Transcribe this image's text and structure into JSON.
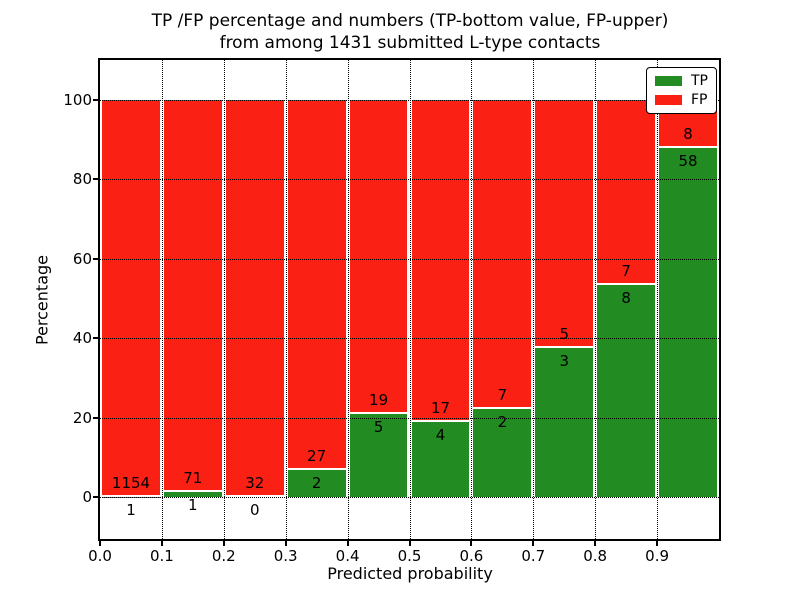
{
  "title": {
    "line1": "TP /FP percentage and numbers (TP-bottom value, FP-upper)",
    "line2": "from among 1431 submitted L-type contacts"
  },
  "chart_data": {
    "type": "bar",
    "stacked": true,
    "total_contacts": 1431,
    "bins": [
      "0.0-0.1",
      "0.1-0.2",
      "0.2-0.3",
      "0.3-0.4",
      "0.4-0.5",
      "0.5-0.6",
      "0.6-0.7",
      "0.7-0.8",
      "0.8-0.9",
      "0.9-1.0"
    ],
    "series": [
      {
        "name": "TP",
        "color": "#228b22",
        "counts": [
          1,
          1,
          0,
          2,
          5,
          4,
          2,
          3,
          8,
          58
        ]
      },
      {
        "name": "FP",
        "color": "#fa2014",
        "counts": [
          1154,
          71,
          32,
          27,
          19,
          17,
          7,
          5,
          7,
          8
        ]
      }
    ],
    "tp_percent": [
      0.09,
      1.39,
      0,
      6.9,
      20.83,
      19.05,
      22.22,
      37.5,
      53.33,
      87.88
    ],
    "xlabel": "Predicted probability",
    "ylabel": "Percentage",
    "xticks": [
      "0.0",
      "0.1",
      "0.2",
      "0.3",
      "0.4",
      "0.5",
      "0.6",
      "0.7",
      "0.8",
      "0.9"
    ],
    "yticks": [
      0,
      20,
      40,
      60,
      80,
      100
    ],
    "xlim": [
      0,
      1
    ],
    "ylim": [
      -10.5,
      110
    ],
    "grid": "dotted",
    "legend": {
      "position": "upper right",
      "entries": [
        {
          "label": "TP",
          "color": "#228b22"
        },
        {
          "label": "FP",
          "color": "#fa2014"
        }
      ]
    }
  }
}
